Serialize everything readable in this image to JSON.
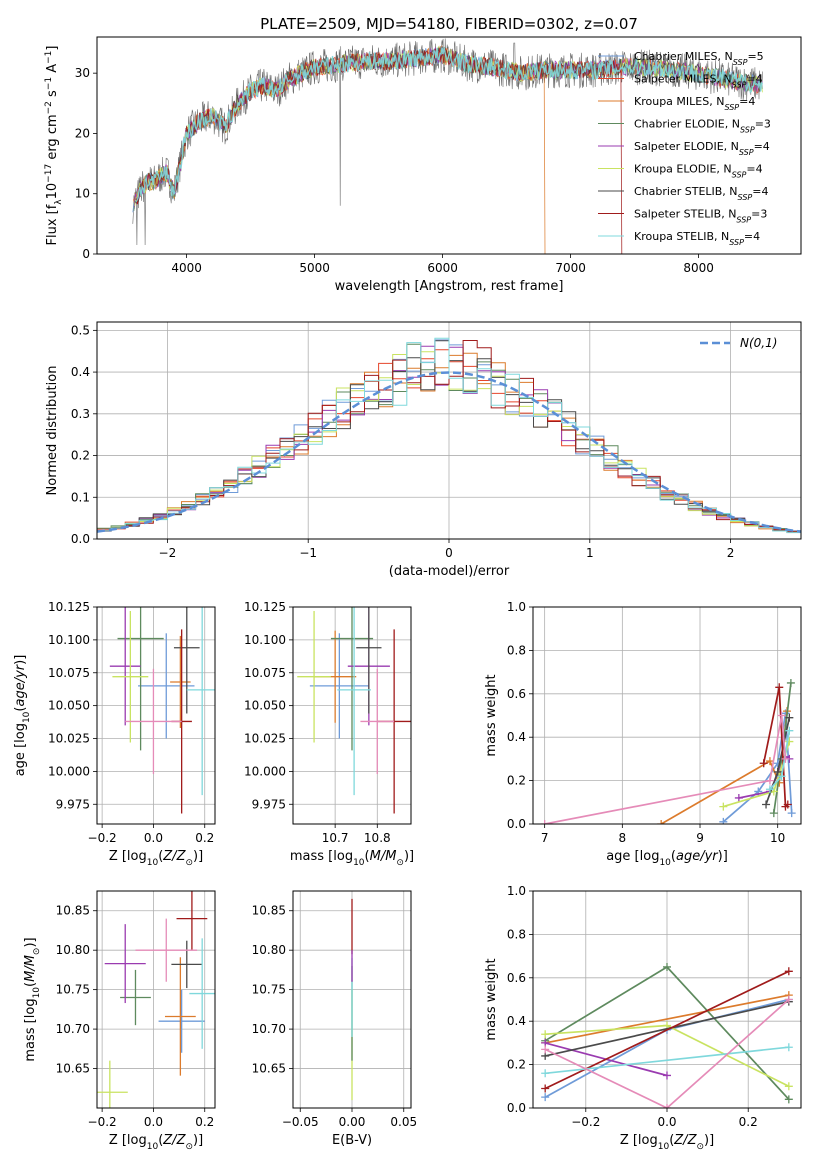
{
  "figure": {
    "title": "PLATE=2509, MJD=54180, FIBERID=0302, z=0.07"
  },
  "colors": {
    "Chabrier MILES": "#6f9bd8",
    "Salpeter MILES": "#e5462b",
    "Kroupa MILES": "#dc7b2c",
    "Chabrier ELODIE": "#5e8a5e",
    "Salpeter ELODIE": "#9a3bb0",
    "Kroupa ELODIE": "#c9e361",
    "Chabrier STELIB": "#4a4a4a",
    "Salpeter STELIB": "#a01b1b",
    "Kroupa STELIB": "#7fd8dc",
    "extra pink": "#e58bb8",
    "normal curve": "#5b8fd6"
  },
  "chart_data": [
    {
      "id": "spectrum",
      "type": "line",
      "xlabel": "wavelength [Angstrom, rest frame]",
      "ylabel": "Flux [f_λ10^-17 erg cm^-2 s^-1 A^-1]",
      "xlim": [
        3300,
        8800
      ],
      "ylim": [
        0,
        36
      ],
      "xticks": [
        4000,
        5000,
        6000,
        7000,
        8000
      ],
      "yticks": [
        0,
        10,
        20,
        30
      ],
      "legend": [
        {
          "name": "Chabrier MILES",
          "nssp": "5"
        },
        {
          "name": "Salpeter MILES",
          "nssp": "4"
        },
        {
          "name": "Kroupa MILES",
          "nssp": "4"
        },
        {
          "name": "Chabrier ELODIE",
          "nssp": "3"
        },
        {
          "name": "Salpeter ELODIE",
          "nssp": "4"
        },
        {
          "name": "Kroupa ELODIE",
          "nssp": "4"
        },
        {
          "name": "Chabrier STELIB",
          "nssp": "4"
        },
        {
          "name": "Salpeter STELIB",
          "nssp": "3"
        },
        {
          "name": "Kroupa STELIB",
          "nssp": "4"
        }
      ],
      "data_envelope": {
        "x": [
          3580,
          3650,
          3700,
          3750,
          3800,
          3850,
          3900,
          3950,
          4000,
          4100,
          4200,
          4300,
          4400,
          4500,
          4600,
          4700,
          4800,
          4900,
          5000,
          5200,
          5400,
          5600,
          5800,
          6000,
          6200,
          6400,
          6600,
          6800,
          7000,
          7200,
          7400,
          7600,
          7800,
          8000,
          8200,
          8500
        ],
        "y": [
          8,
          11,
          12,
          12,
          13,
          13.5,
          10,
          15,
          20,
          22,
          23,
          21,
          25,
          27,
          28,
          27,
          29,
          30,
          31,
          31.5,
          32,
          32,
          32.5,
          33,
          31.5,
          31,
          30,
          30.5,
          30.5,
          30.5,
          31,
          31,
          30.5,
          30,
          29,
          28
        ]
      }
    },
    {
      "id": "residuals",
      "type": "line",
      "xlabel": "(data-model)/error",
      "ylabel": "Normed distribution",
      "xlim": [
        -2.5,
        2.5
      ],
      "ylim": [
        0,
        0.52
      ],
      "xticks": [
        -2,
        -1,
        0,
        1,
        2
      ],
      "yticks": [
        0.0,
        0.1,
        0.2,
        0.3,
        0.4,
        0.5
      ],
      "legend_label": "N(0,1)"
    },
    {
      "id": "age_vs_Z",
      "type": "scatter",
      "xlabel": "Z [log10(Z/Z⊙)]",
      "ylabel": "age  [log10(age/yr)]",
      "xlim": [
        -0.22,
        0.24
      ],
      "ylim": [
        9.96,
        10.125
      ],
      "xticks": [
        -0.2,
        0.0,
        0.2
      ],
      "yticks": [
        9.975,
        10.0,
        10.025,
        10.05,
        10.075,
        10.1,
        10.125
      ],
      "points": [
        {
          "model": "Chabrier MILES",
          "x": 0.05,
          "y": 10.065,
          "xerr": 0.11,
          "yerr": 0.04
        },
        {
          "model": "Kroupa MILES",
          "x": 0.105,
          "y": 10.068,
          "xerr": 0.04,
          "yerr": 0.035
        },
        {
          "model": "Chabrier ELODIE",
          "x": -0.05,
          "y": 10.101,
          "xerr": 0.09,
          "yerr": 0.085
        },
        {
          "model": "Salpeter ELODIE",
          "x": -0.11,
          "y": 10.08,
          "xerr": 0.06,
          "yerr": 0.045
        },
        {
          "model": "Kroupa ELODIE",
          "x": -0.09,
          "y": 10.072,
          "xerr": 0.07,
          "yerr": 0.05
        },
        {
          "model": "Chabrier STELIB",
          "x": 0.13,
          "y": 10.094,
          "xerr": 0.05,
          "yerr": 0.05
        },
        {
          "model": "Salpeter STELIB",
          "x": 0.11,
          "y": 10.038,
          "xerr": 0.04,
          "yerr": 0.07
        },
        {
          "model": "Kroupa STELIB",
          "x": 0.19,
          "y": 10.062,
          "xerr": 0.06,
          "yerr": 0.08
        },
        {
          "model": "extra pink",
          "x": 0.0,
          "y": 10.038,
          "xerr": 0.11,
          "yerr": 0.04
        }
      ]
    },
    {
      "id": "age_vs_mass",
      "type": "scatter",
      "xlabel": "mass [log10(M/M⊙)]",
      "ylabel": "",
      "xlim": [
        10.6,
        10.88
      ],
      "ylim": [
        9.96,
        10.125
      ],
      "xticks": [
        10.7,
        10.8
      ],
      "yticks": [
        9.975,
        10.0,
        10.025,
        10.05,
        10.075,
        10.1,
        10.125
      ],
      "points": [
        {
          "model": "Chabrier MILES",
          "x": 10.71,
          "y": 10.065,
          "xerr": 0.07,
          "yerr": 0.04
        },
        {
          "model": "Kroupa MILES",
          "x": 10.7,
          "y": 10.072,
          "xerr": 0.05,
          "yerr": 0.035
        },
        {
          "model": "Chabrier ELODIE",
          "x": 10.74,
          "y": 10.101,
          "xerr": 0.05,
          "yerr": 0.085
        },
        {
          "model": "Salpeter ELODIE",
          "x": 10.78,
          "y": 10.08,
          "xerr": 0.05,
          "yerr": 0.045
        },
        {
          "model": "Kroupa ELODIE",
          "x": 10.65,
          "y": 10.072,
          "xerr": 0.04,
          "yerr": 0.05
        },
        {
          "model": "Chabrier STELIB",
          "x": 10.78,
          "y": 10.094,
          "xerr": 0.03,
          "yerr": 0.05
        },
        {
          "model": "Salpeter STELIB",
          "x": 10.84,
          "y": 10.038,
          "xerr": 0.04,
          "yerr": 0.07
        },
        {
          "model": "Kroupa STELIB",
          "x": 10.745,
          "y": 10.062,
          "xerr": 0.04,
          "yerr": 0.08
        },
        {
          "model": "extra pink",
          "x": 10.8,
          "y": 10.038,
          "xerr": 0.04,
          "yerr": 0.04
        }
      ]
    },
    {
      "id": "weight_vs_age",
      "type": "line",
      "xlabel": "age  [log10(age/yr)]",
      "ylabel": "mass weight",
      "xlim": [
        6.85,
        10.3
      ],
      "ylim": [
        0,
        1.0
      ],
      "xticks": [
        7,
        8,
        9,
        10
      ],
      "yticks": [
        0.0,
        0.2,
        0.4,
        0.6,
        0.8,
        1.0
      ],
      "series": [
        {
          "model": "Chabrier MILES",
          "x": [
            9.3,
            9.75,
            10.0,
            10.1,
            10.18
          ],
          "y": [
            0.01,
            0.15,
            0.28,
            0.51,
            0.05
          ]
        },
        {
          "model": "Kroupa MILES",
          "x": [
            8.5,
            9.9,
            10.02,
            10.12
          ],
          "y": [
            0.0,
            0.29,
            0.19,
            0.52
          ]
        },
        {
          "model": "Chabrier ELODIE",
          "x": [
            9.95,
            10.05,
            10.17
          ],
          "y": [
            0.05,
            0.3,
            0.65
          ]
        },
        {
          "model": "Salpeter ELODIE",
          "x": [
            9.5,
            9.9,
            10.1,
            10.15
          ],
          "y": [
            0.12,
            0.15,
            0.31,
            0.3
          ]
        },
        {
          "model": "Kroupa ELODIE",
          "x": [
            9.3,
            9.95,
            10.15
          ],
          "y": [
            0.08,
            0.15,
            0.38
          ]
        },
        {
          "model": "Chabrier STELIB",
          "x": [
            9.85,
            10.0,
            10.15
          ],
          "y": [
            0.09,
            0.24,
            0.49
          ]
        },
        {
          "model": "Salpeter STELIB",
          "x": [
            9.82,
            10.02,
            10.1,
            10.13
          ],
          "y": [
            0.28,
            0.63,
            0.08,
            0.09
          ]
        },
        {
          "model": "Kroupa STELIB",
          "x": [
            9.9,
            10.05,
            10.15
          ],
          "y": [
            0.16,
            0.22,
            0.43
          ]
        },
        {
          "model": "extra pink",
          "x": [
            7.0,
            9.9,
            10.05,
            10.1
          ],
          "y": [
            0.0,
            0.2,
            0.5,
            0.3
          ]
        }
      ]
    },
    {
      "id": "mass_vs_Z",
      "type": "scatter",
      "xlabel": "Z [log10(Z/Z⊙)]",
      "ylabel": "mass [log10(M/M⊙)]",
      "xlim": [
        -0.22,
        0.24
      ],
      "ylim": [
        10.6,
        10.875
      ],
      "xticks": [
        -0.2,
        0.0,
        0.2
      ],
      "yticks": [
        10.65,
        10.7,
        10.75,
        10.8,
        10.85
      ],
      "points": [
        {
          "model": "Chabrier MILES",
          "x": 0.11,
          "y": 10.71,
          "xerr": 0.09,
          "yerr": 0.04
        },
        {
          "model": "Kroupa MILES",
          "x": 0.105,
          "y": 10.716,
          "xerr": 0.06,
          "yerr": 0.075
        },
        {
          "model": "Chabrier ELODIE",
          "x": -0.07,
          "y": 10.74,
          "xerr": 0.06,
          "yerr": 0.035
        },
        {
          "model": "Salpeter ELODIE",
          "x": -0.11,
          "y": 10.783,
          "xerr": 0.08,
          "yerr": 0.05
        },
        {
          "model": "Kroupa ELODIE",
          "x": -0.17,
          "y": 10.62,
          "xerr": 0.07,
          "yerr": 0.04
        },
        {
          "model": "Chabrier STELIB",
          "x": 0.13,
          "y": 10.782,
          "xerr": 0.06,
          "yerr": 0.03
        },
        {
          "model": "Salpeter STELIB",
          "x": 0.15,
          "y": 10.84,
          "xerr": 0.06,
          "yerr": 0.04
        },
        {
          "model": "Kroupa STELIB",
          "x": 0.19,
          "y": 10.745,
          "xerr": 0.05,
          "yerr": 0.07
        },
        {
          "model": "extra pink",
          "x": 0.05,
          "y": 10.8,
          "xerr": 0.12,
          "yerr": 0.04
        }
      ]
    },
    {
      "id": "mass_vs_EBV",
      "type": "scatter",
      "xlabel": "E(B-V)",
      "ylabel": "",
      "xlim": [
        -0.057,
        0.057
      ],
      "ylim": [
        10.6,
        10.875
      ],
      "xticks": [
        -0.05,
        0.0,
        0.05
      ],
      "yticks": [
        10.65,
        10.7,
        10.75,
        10.8,
        10.85
      ],
      "points": [
        {
          "model": "Kroupa ELODIE",
          "x": 0.0,
          "y": 10.68,
          "xerr": 0.0,
          "yerr": 0.07
        },
        {
          "model": "Chabrier ELODIE",
          "x": 0.0,
          "y": 10.72,
          "xerr": 0.0,
          "yerr": 0.06
        },
        {
          "model": "Kroupa STELIB",
          "x": 0.0,
          "y": 10.74,
          "xerr": 0.0,
          "yerr": 0.05
        },
        {
          "model": "Salpeter STELIB",
          "x": 0.0,
          "y": 10.83,
          "xerr": 0.0,
          "yerr": 0.035
        },
        {
          "model": "Salpeter ELODIE",
          "x": 0.0,
          "y": 10.78,
          "xerr": 0.0,
          "yerr": 0.02
        }
      ]
    },
    {
      "id": "weight_vs_Z",
      "type": "line",
      "xlabel": "Z [log10(Z/Z⊙)]",
      "ylabel": "mass weight",
      "xlim": [
        -0.33,
        0.33
      ],
      "ylim": [
        0,
        1.0
      ],
      "xticks": [
        -0.2,
        0.0,
        0.2
      ],
      "yticks": [
        0.0,
        0.2,
        0.4,
        0.6,
        0.8,
        1.0
      ],
      "series": [
        {
          "model": "Chabrier MILES",
          "x": [
            -0.3,
            0.0,
            0.3
          ],
          "y": [
            0.05,
            0.36,
            0.5
          ]
        },
        {
          "model": "Kroupa MILES",
          "x": [
            -0.3,
            0.3
          ],
          "y": [
            0.3,
            0.52
          ]
        },
        {
          "model": "Chabrier ELODIE",
          "x": [
            -0.3,
            0.0,
            0.3
          ],
          "y": [
            0.31,
            0.65,
            0.04
          ]
        },
        {
          "model": "Salpeter ELODIE",
          "x": [
            -0.3,
            0.0
          ],
          "y": [
            0.3,
            0.15
          ]
        },
        {
          "model": "Kroupa ELODIE",
          "x": [
            -0.3,
            0.0,
            0.3
          ],
          "y": [
            0.34,
            0.38,
            0.1
          ]
        },
        {
          "model": "Chabrier STELIB",
          "x": [
            -0.3,
            0.3
          ],
          "y": [
            0.24,
            0.49
          ]
        },
        {
          "model": "Salpeter STELIB",
          "x": [
            -0.3,
            0.3
          ],
          "y": [
            0.09,
            0.63
          ]
        },
        {
          "model": "Kroupa STELIB",
          "x": [
            -0.3,
            0.3
          ],
          "y": [
            0.16,
            0.28
          ]
        },
        {
          "model": "extra pink",
          "x": [
            -0.3,
            0.0,
            0.3
          ],
          "y": [
            0.27,
            0.0,
            0.5
          ]
        }
      ]
    }
  ]
}
